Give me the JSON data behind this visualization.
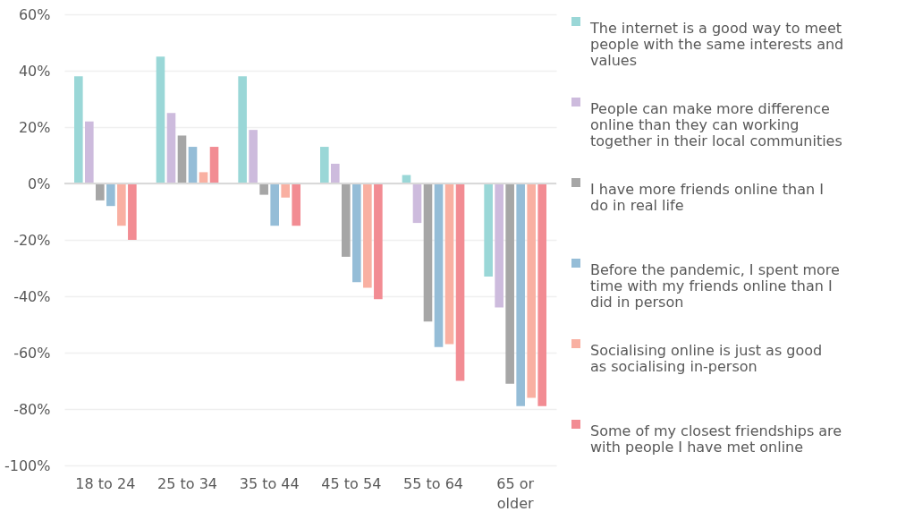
{
  "chart_data": {
    "type": "bar",
    "categories": [
      "18 to 24",
      "25 to 34",
      "35 to 44",
      "45 to 54",
      "55 to 64",
      "65 or older"
    ],
    "series": [
      {
        "name": "The internet is a good way to meet people with the same interests and values",
        "color": "#9ad7d7",
        "values": [
          38,
          45,
          38,
          13,
          3,
          -33
        ]
      },
      {
        "name": "People can make more difference online than they can working together in their local communities",
        "color": "#cdbbdd",
        "values": [
          22,
          25,
          19,
          7,
          -14,
          -44
        ]
      },
      {
        "name": "I have more friends online than I do in real life",
        "color": "#a6a6a6",
        "values": [
          -6,
          17,
          -4,
          -26,
          -49,
          -71
        ]
      },
      {
        "name": "Before the pandemic, I spent more time with my friends online than I did in person",
        "color": "#95bdd7",
        "values": [
          -8,
          13,
          -15,
          -35,
          -58,
          -79
        ]
      },
      {
        "name": "Socialising online is just as good as socialising in-person",
        "color": "#f9b0a2",
        "values": [
          -15,
          4,
          -5,
          -37,
          -57,
          -76
        ]
      },
      {
        "name": "Some of my closest friendships are with people I have met online",
        "color": "#f28c93",
        "values": [
          -20,
          13,
          -15,
          -41,
          -70,
          -79
        ]
      }
    ],
    "ylim": [
      -100,
      60
    ],
    "yticks": [
      {
        "value": -100,
        "label": "-100%"
      },
      {
        "value": -80,
        "label": "-80%"
      },
      {
        "value": -60,
        "label": "-60%"
      },
      {
        "value": -40,
        "label": "-40%"
      },
      {
        "value": -20,
        "label": "-20%"
      },
      {
        "value": 0,
        "label": "0%"
      },
      {
        "value": 20,
        "label": "20%"
      },
      {
        "value": 40,
        "label": "40%"
      },
      {
        "value": 60,
        "label": "60%"
      }
    ],
    "grid": "y",
    "legend": "right",
    "ref_lines": [
      {
        "axis": "y",
        "value": 0,
        "color": "#d9d9d9"
      }
    ]
  }
}
